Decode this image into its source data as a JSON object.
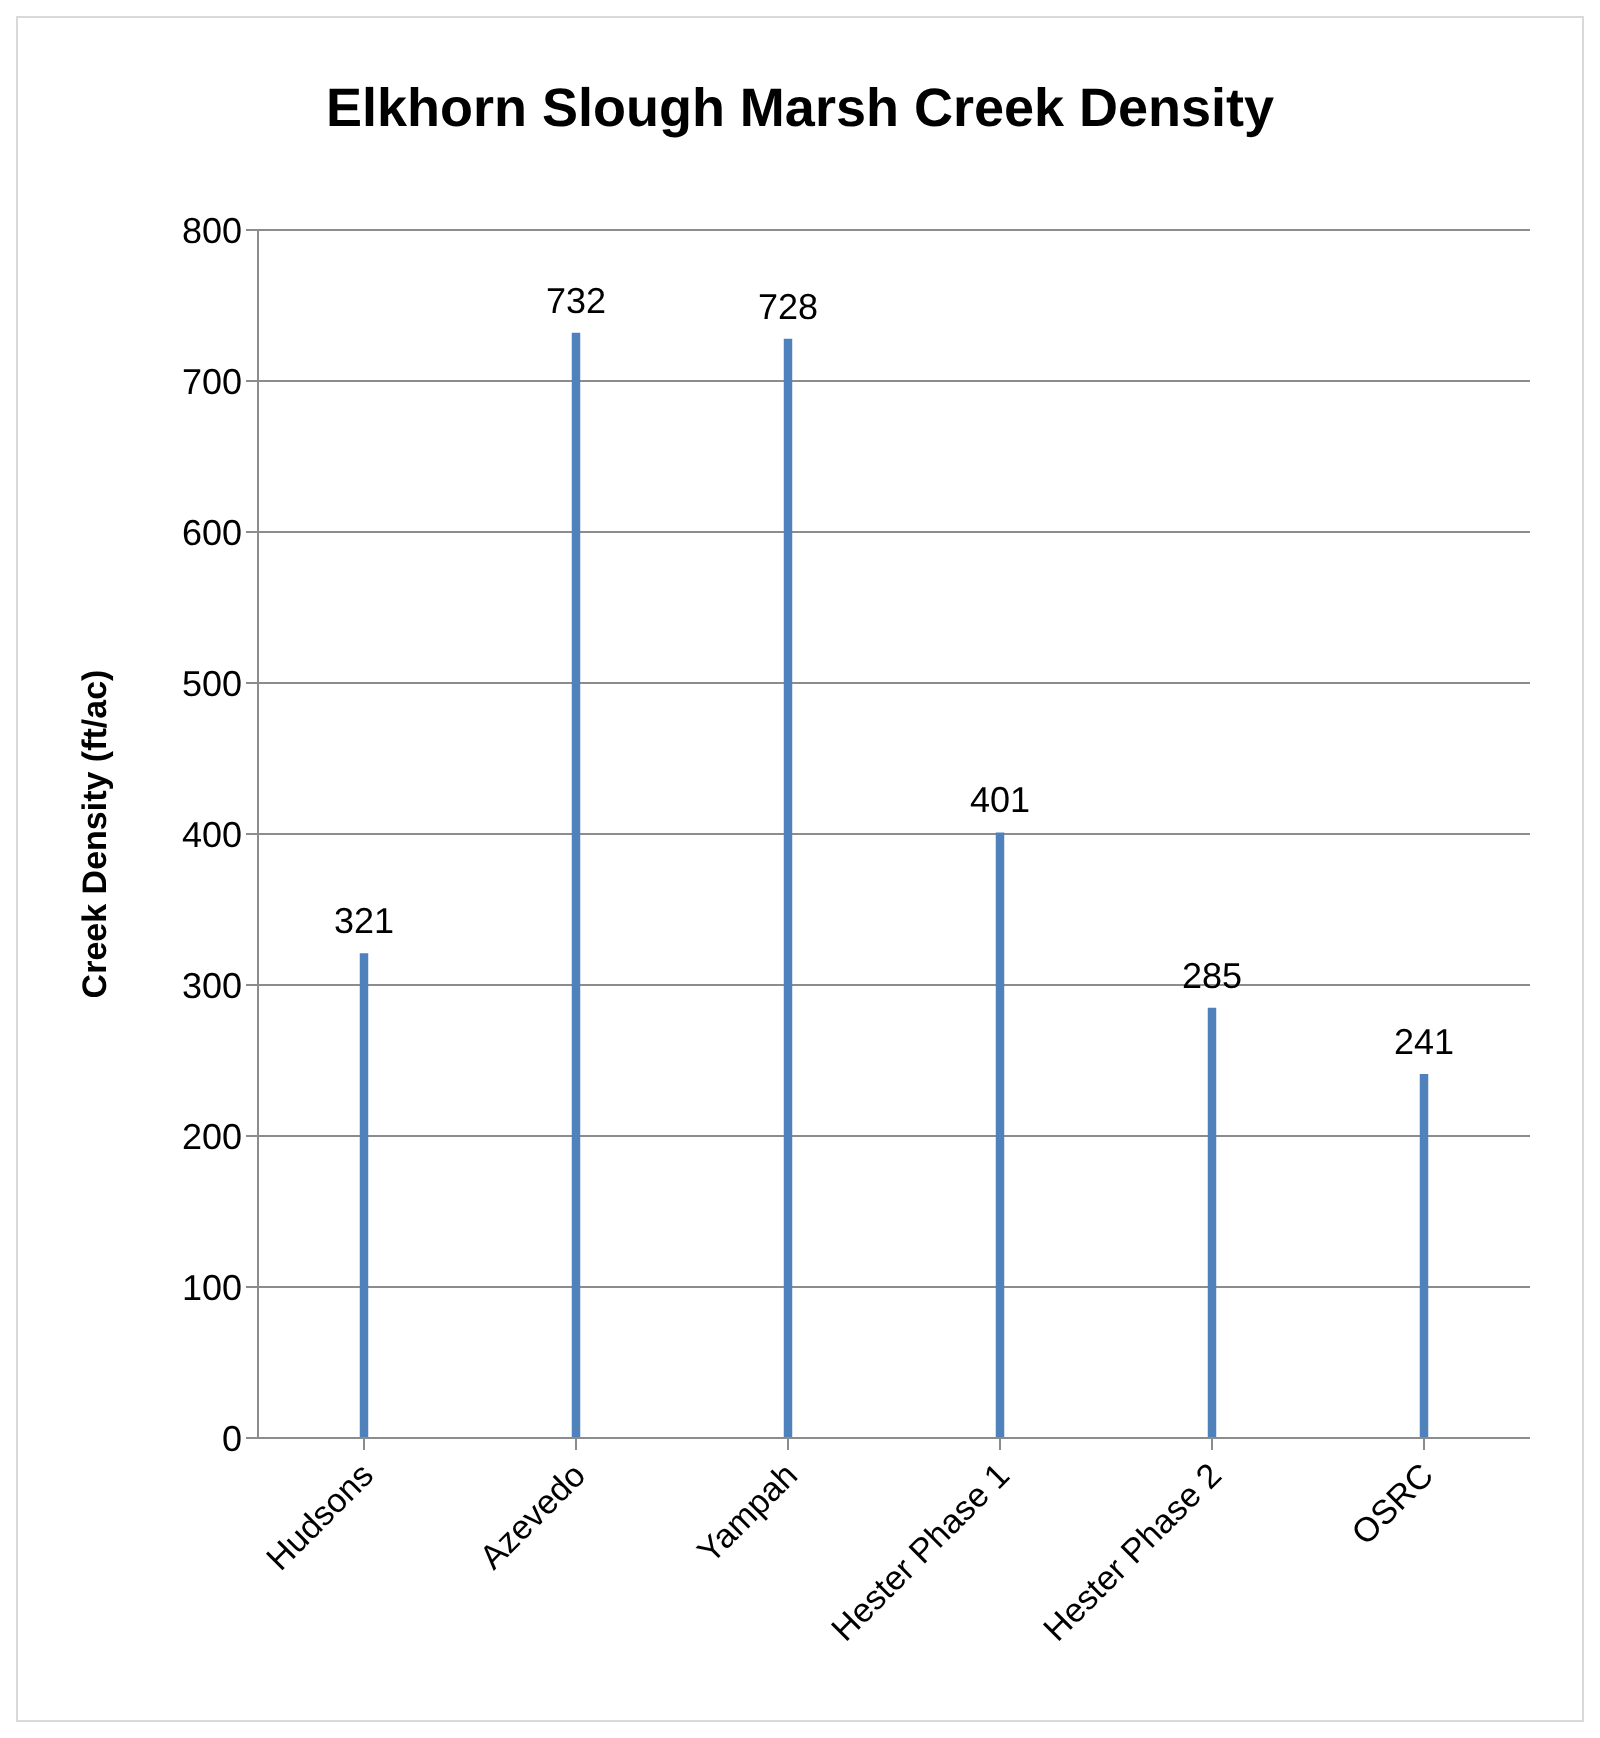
{
  "chart_data": {
    "type": "bar",
    "title": "Elkhorn Slough Marsh Creek Density",
    "ylabel": "Creek Density (ft/ac)",
    "categories": [
      "Hudsons",
      "Azevedo",
      "Yampah",
      "Hester Phase 1",
      "Hester Phase 2",
      "OSRC"
    ],
    "values": [
      321,
      732,
      728,
      401,
      285,
      241
    ],
    "color": "#4f81bd",
    "ylim": [
      0,
      800
    ],
    "yticks": [
      0,
      100,
      200,
      300,
      400,
      500,
      600,
      700,
      800
    ],
    "grid": "y",
    "data_labels": true
  }
}
